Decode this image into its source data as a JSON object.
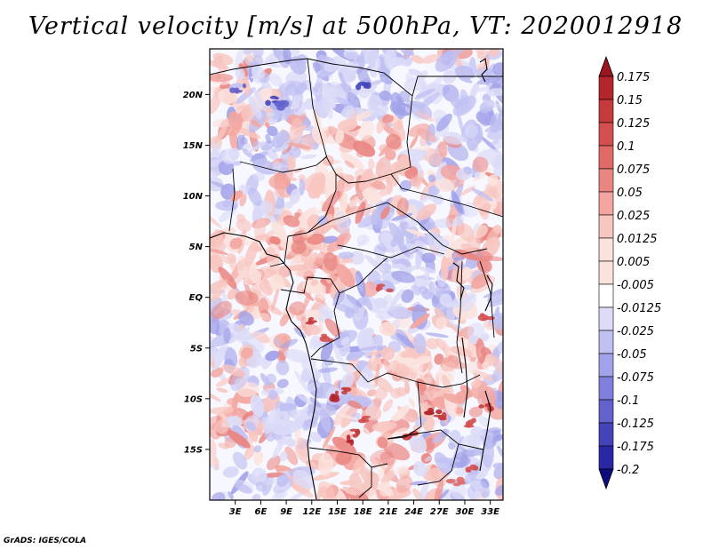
{
  "title": "Vertical velocity [m/s] at 500hPa, VT: 2020012918",
  "credit": "GrADS: IGES/COLA",
  "map": {
    "lon_range": [
      0,
      34.5
    ],
    "lat_range": [
      -20,
      24.5
    ],
    "lat_ticks": [
      {
        "value": 20,
        "label": "20N"
      },
      {
        "value": 15,
        "label": "15N"
      },
      {
        "value": 10,
        "label": "10N"
      },
      {
        "value": 5,
        "label": "5N"
      },
      {
        "value": 0,
        "label": "EQ"
      },
      {
        "value": -5,
        "label": "5S"
      },
      {
        "value": -10,
        "label": "10S"
      },
      {
        "value": -15,
        "label": "15S"
      }
    ],
    "lon_ticks": [
      {
        "value": 3,
        "label": "3E"
      },
      {
        "value": 6,
        "label": "6E"
      },
      {
        "value": 9,
        "label": "9E"
      },
      {
        "value": 12,
        "label": "12E"
      },
      {
        "value": 15,
        "label": "15E"
      },
      {
        "value": 18,
        "label": "18E"
      },
      {
        "value": 21,
        "label": "21E"
      },
      {
        "value": 24,
        "label": "24E"
      },
      {
        "value": 27,
        "label": "27E"
      },
      {
        "value": 30,
        "label": "30E"
      },
      {
        "value": 33,
        "label": "33E"
      }
    ]
  },
  "colorbar": {
    "levels": [
      {
        "label": "0.175",
        "value": 0.175,
        "color": "#a01a22"
      },
      {
        "label": "0.15",
        "value": 0.15,
        "color": "#b3262c"
      },
      {
        "label": "0.125",
        "value": 0.125,
        "color": "#c53a3a"
      },
      {
        "label": "0.1",
        "value": 0.1,
        "color": "#d45050"
      },
      {
        "label": "0.075",
        "value": 0.075,
        "color": "#e06a66"
      },
      {
        "label": "0.05",
        "value": 0.05,
        "color": "#ea8682"
      },
      {
        "label": "0.025",
        "value": 0.025,
        "color": "#f3a6a0"
      },
      {
        "label": "0.0125",
        "value": 0.0125,
        "color": "#f8c6c0"
      },
      {
        "label": "0.005",
        "value": 0.005,
        "color": "#fbe2dd"
      },
      {
        "label": "-0.005",
        "value": -0.005,
        "color": "#ffffff"
      },
      {
        "label": "-0.0125",
        "value": -0.0125,
        "color": "#dcdcf8"
      },
      {
        "label": "-0.025",
        "value": -0.025,
        "color": "#c0c0f2"
      },
      {
        "label": "-0.05",
        "value": -0.05,
        "color": "#a2a2ea"
      },
      {
        "label": "-0.075",
        "value": -0.075,
        "color": "#8080dc"
      },
      {
        "label": "-0.1",
        "value": -0.1,
        "color": "#6262cc"
      },
      {
        "label": "-0.125",
        "value": -0.125,
        "color": "#4444ba"
      },
      {
        "label": "-0.175",
        "value": -0.175,
        "color": "#2828a4"
      },
      {
        "label": "-0.2",
        "value": -0.2,
        "color": "#12128c"
      }
    ],
    "top_cap_color": "#9a1620",
    "bottom_cap_color": "#0c0c7e"
  }
}
